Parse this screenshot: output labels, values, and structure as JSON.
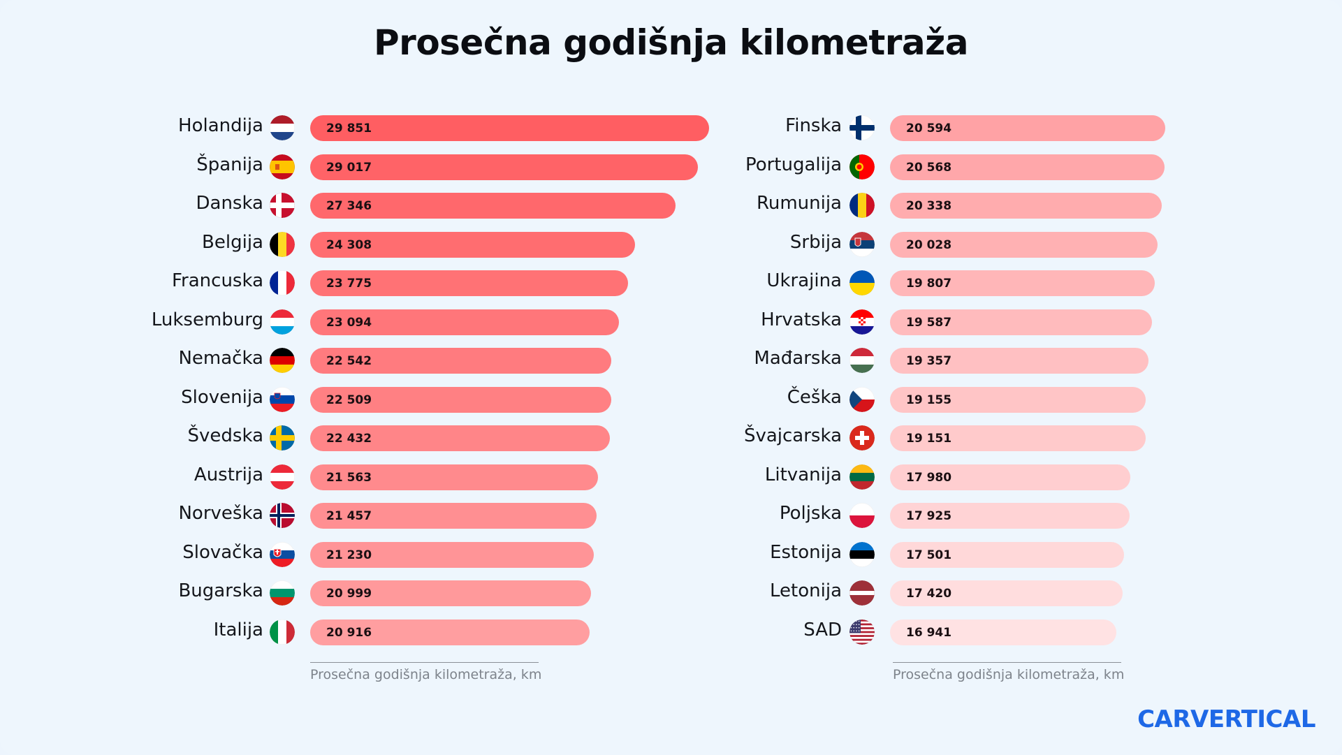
{
  "title": "Prosečna godišnja kilometraža",
  "logo": "CARVERTICAL",
  "chart_data": [
    {
      "type": "bar",
      "orientation": "horizontal",
      "title": "Prosečna godišnja kilometraža",
      "xlabel": "Prosečna godišnja kilometraža, km",
      "categories": [
        "Holandija",
        "Španija",
        "Danska",
        "Belgija",
        "Francuska",
        "Luksemburg",
        "Nemačka",
        "Slovenija",
        "Švedska",
        "Austrija",
        "Norveška",
        "Slovačka",
        "Bugarska",
        "Italija"
      ],
      "values": [
        29851,
        29017,
        27346,
        24308,
        23775,
        23094,
        22542,
        22509,
        22432,
        21563,
        21457,
        21230,
        20999,
        20916
      ],
      "value_labels": [
        "29 851",
        "29 017",
        "27 346",
        "24 308",
        "23 775",
        "23 094",
        "22 542",
        "22 509",
        "22 432",
        "21 563",
        "21 457",
        "21 230",
        "20 999",
        "20 916"
      ],
      "flags": [
        "nl",
        "es",
        "dk",
        "be",
        "fr",
        "lu",
        "de",
        "si",
        "se",
        "at",
        "no",
        "sk",
        "bg",
        "it"
      ],
      "xlim": [
        0,
        29851
      ]
    },
    {
      "type": "bar",
      "orientation": "horizontal",
      "title": "Prosečna godišnja kilometraža",
      "xlabel": "Prosečna godišnja kilometraža, km",
      "categories": [
        "Finska",
        "Portugalija",
        "Rumunija",
        "Srbija",
        "Ukrajina",
        "Hrvatska",
        "Mađarska",
        "Češka",
        "Švajcarska",
        "Litvanija",
        "Poljska",
        "Estonija",
        "Letonija",
        "SAD"
      ],
      "values": [
        20594,
        20568,
        20338,
        20028,
        19807,
        19587,
        19357,
        19155,
        19151,
        17980,
        17925,
        17501,
        17420,
        16941
      ],
      "value_labels": [
        "20 594",
        "20 568",
        "20 338",
        "20 028",
        "19 807",
        "19 587",
        "19 357",
        "19 155",
        "19 151",
        "17 980",
        "17 925",
        "17 501",
        "17 420",
        "16 941"
      ],
      "flags": [
        "fi",
        "pt",
        "ro",
        "rs",
        "ua",
        "hr",
        "hu",
        "cz",
        "ch",
        "lt",
        "pl",
        "ee",
        "lv",
        "us"
      ],
      "xlim": [
        0,
        29851
      ]
    }
  ],
  "colors": {
    "bar_strong": "#ff5e62",
    "bar_weak": "#ffe2e3",
    "background": "#eef6fd",
    "logo": "#1e68e6"
  }
}
